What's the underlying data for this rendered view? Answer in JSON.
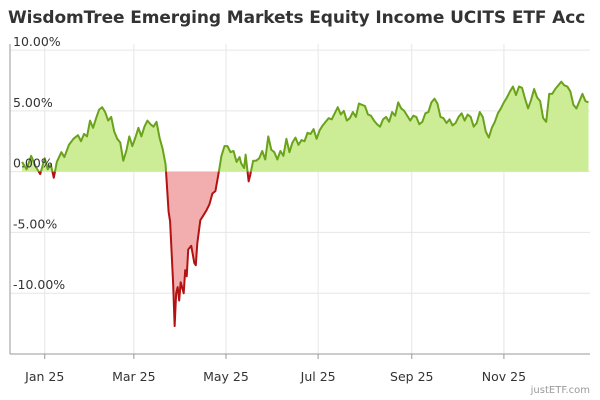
{
  "chart_data": {
    "type": "area",
    "title": "WisdomTree Emerging Markets Equity Income UCITS ETF Acc",
    "credit": "justETF.com",
    "y_ticks": [
      {
        "value": 10,
        "label": "10.00%"
      },
      {
        "value": 5,
        "label": "5.00%"
      },
      {
        "value": 0,
        "label": "0.00%"
      },
      {
        "value": -5,
        "label": "-5.00%"
      },
      {
        "value": -10,
        "label": "-10.00%"
      }
    ],
    "x_ticks": [
      {
        "day": 15,
        "label": "Jan 25"
      },
      {
        "day": 74,
        "label": "Mar 25"
      },
      {
        "day": 135,
        "label": "May 25"
      },
      {
        "day": 196,
        "label": "Jul 25"
      },
      {
        "day": 258,
        "label": "Sep 25"
      },
      {
        "day": 319,
        "label": "Nov 25"
      }
    ],
    "ylim": [
      -15,
      10.5
    ],
    "xlim": [
      -8,
      376
    ],
    "grid": true,
    "colors": {
      "positive_line": "#6aa21c",
      "positive_fill": "#cdec96",
      "negative_line": "#b31212",
      "negative_fill": "#f2aeae",
      "grid": "#e6e6e6",
      "axis": "#999999"
    },
    "x_unit": "days since 2025-01-01",
    "y_unit": "percent return",
    "points": [
      [
        0,
        0.8
      ],
      [
        3,
        0.2
      ],
      [
        6,
        1.3
      ],
      [
        9,
        0.4
      ],
      [
        12,
        -0.2
      ],
      [
        15,
        1.1
      ],
      [
        17,
        0.2
      ],
      [
        19,
        0.6
      ],
      [
        21,
        -0.5
      ],
      [
        23,
        0.8
      ],
      [
        26,
        1.6
      ],
      [
        28,
        1.2
      ],
      [
        31,
        2.2
      ],
      [
        34,
        2.7
      ],
      [
        37,
        3.0
      ],
      [
        39,
        2.5
      ],
      [
        41,
        3.1
      ],
      [
        43,
        2.9
      ],
      [
        45,
        4.2
      ],
      [
        47,
        3.6
      ],
      [
        49,
        4.4
      ],
      [
        51,
        5.1
      ],
      [
        53,
        5.3
      ],
      [
        55,
        4.9
      ],
      [
        57,
        4.2
      ],
      [
        59,
        4.5
      ],
      [
        61,
        3.3
      ],
      [
        63,
        2.7
      ],
      [
        65,
        2.4
      ],
      [
        67,
        0.9
      ],
      [
        69,
        1.7
      ],
      [
        71,
        2.9
      ],
      [
        73,
        2.1
      ],
      [
        75,
        2.8
      ],
      [
        77,
        3.6
      ],
      [
        79,
        2.9
      ],
      [
        81,
        3.7
      ],
      [
        83,
        4.2
      ],
      [
        85,
        3.9
      ],
      [
        87,
        3.7
      ],
      [
        89,
        4.1
      ],
      [
        91,
        2.8
      ],
      [
        93,
        1.9
      ],
      [
        95,
        0.6
      ],
      [
        97,
        -3.3
      ],
      [
        98,
        -4.1
      ],
      [
        100,
        -9.2
      ],
      [
        101,
        -12.7
      ],
      [
        102,
        -10.0
      ],
      [
        103,
        -9.5
      ],
      [
        104,
        -10.6
      ],
      [
        105,
        -9.1
      ],
      [
        107,
        -10.0
      ],
      [
        108,
        -8.1
      ],
      [
        109,
        -8.6
      ],
      [
        110,
        -6.4
      ],
      [
        112,
        -6.1
      ],
      [
        114,
        -7.5
      ],
      [
        115,
        -7.7
      ],
      [
        116,
        -5.9
      ],
      [
        118,
        -4.0
      ],
      [
        120,
        -3.6
      ],
      [
        122,
        -3.2
      ],
      [
        124,
        -2.7
      ],
      [
        126,
        -1.8
      ],
      [
        128,
        -1.6
      ],
      [
        130,
        -0.2
      ],
      [
        132,
        1.3
      ],
      [
        134,
        2.1
      ],
      [
        136,
        2.1
      ],
      [
        138,
        1.6
      ],
      [
        140,
        1.7
      ],
      [
        142,
        0.8
      ],
      [
        144,
        1.2
      ],
      [
        145,
        0.7
      ],
      [
        147,
        0.3
      ],
      [
        148,
        1.4
      ],
      [
        150,
        -0.8
      ],
      [
        151,
        -0.3
      ],
      [
        153,
        0.9
      ],
      [
        155,
        0.9
      ],
      [
        157,
        1.1
      ],
      [
        159,
        1.7
      ],
      [
        161,
        1.0
      ],
      [
        163,
        2.9
      ],
      [
        165,
        1.8
      ],
      [
        167,
        1.6
      ],
      [
        169,
        1.0
      ],
      [
        171,
        1.7
      ],
      [
        173,
        1.3
      ],
      [
        175,
        2.7
      ],
      [
        177,
        1.6
      ],
      [
        179,
        2.4
      ],
      [
        181,
        2.8
      ],
      [
        183,
        2.2
      ],
      [
        185,
        2.6
      ],
      [
        187,
        2.5
      ],
      [
        189,
        3.2
      ],
      [
        191,
        3.1
      ],
      [
        193,
        3.5
      ],
      [
        195,
        2.7
      ],
      [
        197,
        3.4
      ],
      [
        199,
        3.8
      ],
      [
        201,
        4.1
      ],
      [
        203,
        4.4
      ],
      [
        205,
        4.3
      ],
      [
        207,
        4.8
      ],
      [
        209,
        5.3
      ],
      [
        211,
        4.7
      ],
      [
        213,
        5.0
      ],
      [
        215,
        4.2
      ],
      [
        217,
        4.4
      ],
      [
        219,
        4.9
      ],
      [
        221,
        4.5
      ],
      [
        223,
        5.6
      ],
      [
        225,
        5.5
      ],
      [
        227,
        5.4
      ],
      [
        229,
        4.7
      ],
      [
        231,
        4.6
      ],
      [
        233,
        4.2
      ],
      [
        235,
        3.9
      ],
      [
        237,
        3.7
      ],
      [
        239,
        4.3
      ],
      [
        241,
        4.5
      ],
      [
        243,
        4.1
      ],
      [
        245,
        4.9
      ],
      [
        247,
        4.6
      ],
      [
        249,
        5.7
      ],
      [
        251,
        5.2
      ],
      [
        253,
        5.0
      ],
      [
        255,
        4.6
      ],
      [
        257,
        4.2
      ],
      [
        259,
        4.6
      ],
      [
        261,
        4.5
      ],
      [
        263,
        3.9
      ],
      [
        265,
        4.1
      ],
      [
        267,
        4.8
      ],
      [
        269,
        4.9
      ],
      [
        271,
        5.7
      ],
      [
        273,
        6.0
      ],
      [
        275,
        5.6
      ],
      [
        277,
        4.5
      ],
      [
        279,
        4.4
      ],
      [
        281,
        4.0
      ],
      [
        283,
        4.3
      ],
      [
        285,
        3.8
      ],
      [
        287,
        4.0
      ],
      [
        289,
        4.5
      ],
      [
        291,
        4.8
      ],
      [
        293,
        4.2
      ],
      [
        295,
        4.7
      ],
      [
        297,
        4.5
      ],
      [
        299,
        3.7
      ],
      [
        301,
        4.0
      ],
      [
        303,
        4.9
      ],
      [
        305,
        4.5
      ],
      [
        307,
        3.3
      ],
      [
        309,
        2.8
      ],
      [
        311,
        3.6
      ],
      [
        313,
        4.1
      ],
      [
        315,
        4.8
      ],
      [
        317,
        5.2
      ],
      [
        319,
        5.7
      ],
      [
        321,
        6.1
      ],
      [
        323,
        6.6
      ],
      [
        325,
        7.0
      ],
      [
        327,
        6.3
      ],
      [
        329,
        7.0
      ],
      [
        331,
        6.9
      ],
      [
        333,
        6.0
      ],
      [
        335,
        5.2
      ],
      [
        337,
        5.9
      ],
      [
        339,
        6.8
      ],
      [
        341,
        6.1
      ],
      [
        343,
        5.8
      ],
      [
        345,
        4.4
      ],
      [
        347,
        4.1
      ],
      [
        349,
        6.4
      ],
      [
        351,
        6.4
      ],
      [
        353,
        6.8
      ],
      [
        355,
        7.1
      ],
      [
        357,
        7.4
      ],
      [
        359,
        7.1
      ],
      [
        361,
        7.0
      ],
      [
        363,
        6.6
      ],
      [
        365,
        5.5
      ],
      [
        367,
        5.2
      ],
      [
        369,
        5.8
      ],
      [
        371,
        6.4
      ],
      [
        373,
        5.8
      ],
      [
        375,
        5.7
      ]
    ]
  }
}
